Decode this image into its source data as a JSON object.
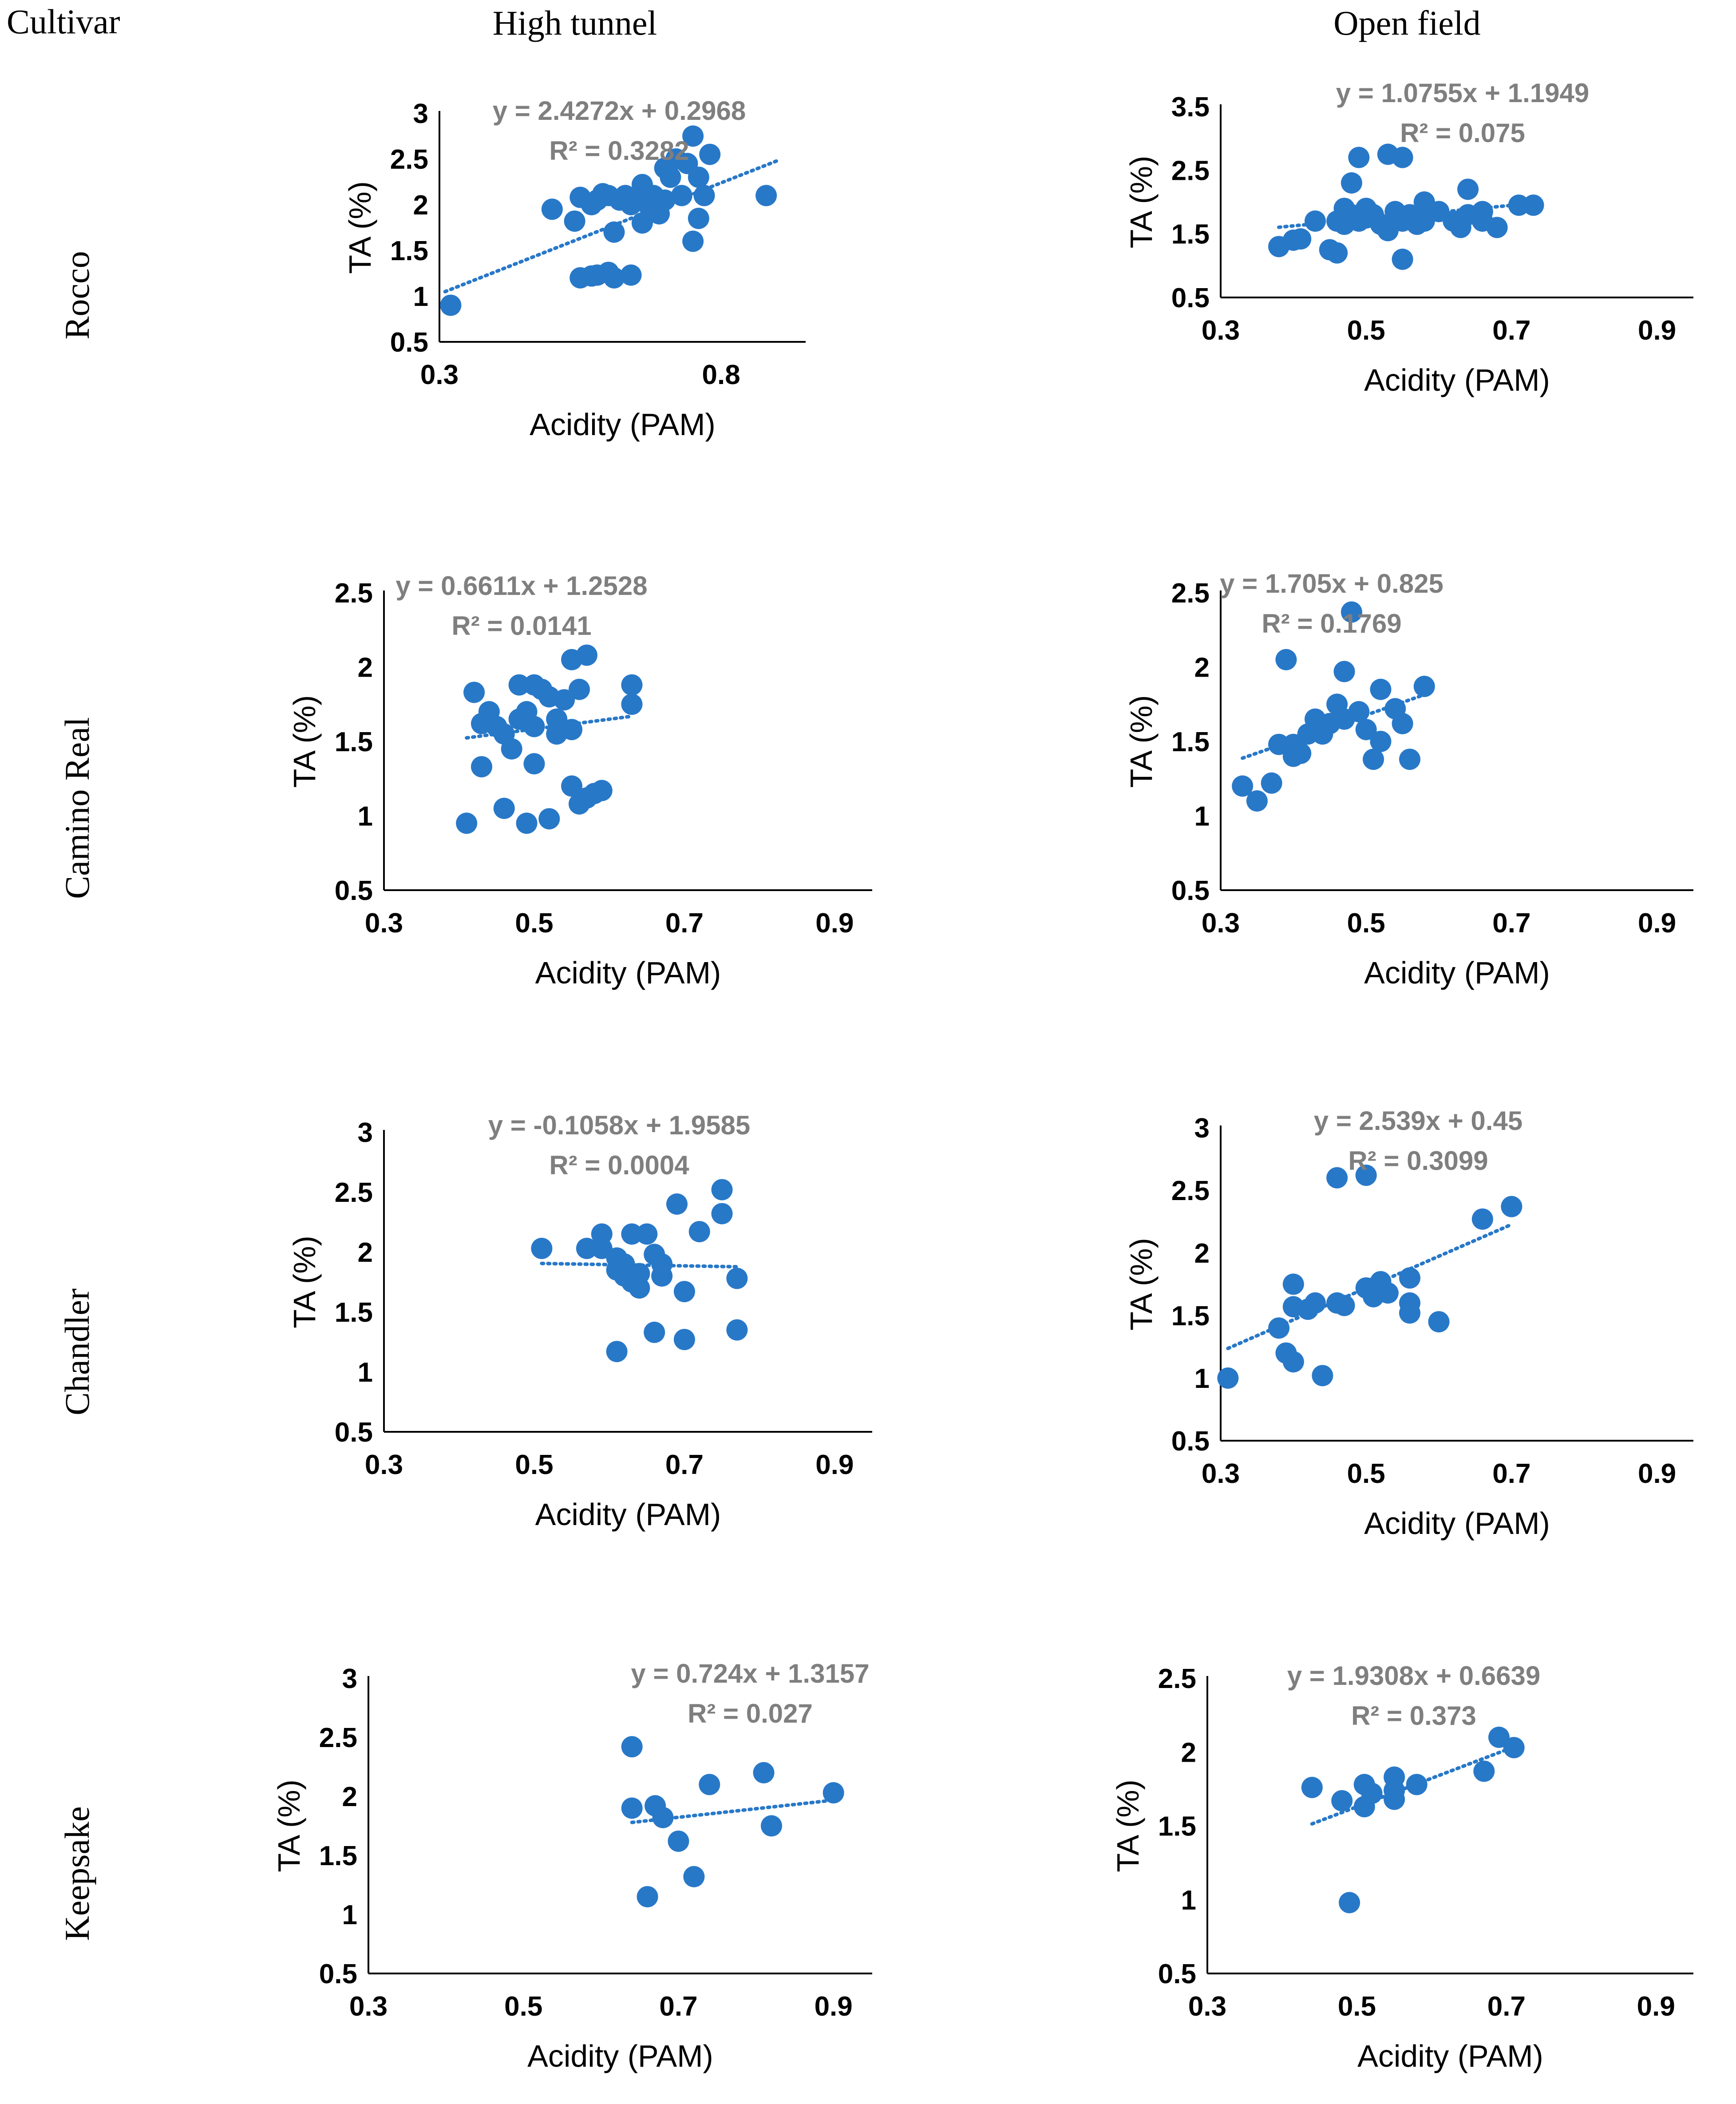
{
  "labels": {
    "cultivar_header": "Cultivar",
    "column_headers": [
      "High tunnel",
      "Open field"
    ],
    "row_labels": [
      "Rocco",
      "Camino Real",
      "Chandler",
      "Keepsake"
    ]
  },
  "colors": {
    "marker": "#2878C8",
    "axis": "#000000",
    "equation": "#7F7F7F",
    "trendline": "#2878C8"
  },
  "chart_data": [
    {
      "type": "scatter",
      "row": 0,
      "col": 0,
      "xlabel": "Acidity (PAM)",
      "ylabel": "TA (%)",
      "xlim": [
        0.3,
        0.95
      ],
      "ylim": [
        0.5,
        3
      ],
      "xticks": [
        "0.3",
        "0.8"
      ],
      "yticks": [
        "0.5",
        "1",
        "1.5",
        "2",
        "2.5",
        "3"
      ],
      "equation": "y = 2.4272x + 0.2968",
      "r2": "R² = 0.3282",
      "trend": {
        "slope": 2.4272,
        "intercept": 0.2968,
        "x_range": [
          0.31,
          0.9
        ]
      },
      "points": [
        [
          0.32,
          0.9
        ],
        [
          0.5,
          1.95
        ],
        [
          0.55,
          1.2
        ],
        [
          0.57,
          1.22
        ],
        [
          0.58,
          1.23
        ],
        [
          0.6,
          1.26
        ],
        [
          0.61,
          1.2
        ],
        [
          0.64,
          1.23
        ],
        [
          0.54,
          1.82
        ],
        [
          0.55,
          2.08
        ],
        [
          0.57,
          2.0
        ],
        [
          0.58,
          2.05
        ],
        [
          0.59,
          2.12
        ],
        [
          0.6,
          2.1
        ],
        [
          0.61,
          1.7
        ],
        [
          0.62,
          2.05
        ],
        [
          0.63,
          2.1
        ],
        [
          0.64,
          2.0
        ],
        [
          0.65,
          2.05
        ],
        [
          0.66,
          1.8
        ],
        [
          0.66,
          2.22
        ],
        [
          0.67,
          2.0
        ],
        [
          0.68,
          2.1
        ],
        [
          0.69,
          1.9
        ],
        [
          0.7,
          2.4
        ],
        [
          0.7,
          2.05
        ],
        [
          0.71,
          2.3
        ],
        [
          0.72,
          2.5
        ],
        [
          0.73,
          2.1
        ],
        [
          0.74,
          2.45
        ],
        [
          0.75,
          2.75
        ],
        [
          0.75,
          1.6
        ],
        [
          0.76,
          1.85
        ],
        [
          0.76,
          2.3
        ],
        [
          0.77,
          2.1
        ],
        [
          0.78,
          2.55
        ],
        [
          0.88,
          2.1
        ]
      ]
    },
    {
      "type": "scatter",
      "row": 0,
      "col": 1,
      "xlabel": "Acidity (PAM)",
      "ylabel": "TA (%)",
      "xlim": [
        0.3,
        0.95
      ],
      "ylim": [
        0.5,
        3.5
      ],
      "xticks": [
        "0.3",
        "0.5",
        "0.7",
        "0.9"
      ],
      "yticks": [
        "0.5",
        "1.5",
        "2.5",
        "3.5"
      ],
      "equation": "y = 1.0755x + 1.1949",
      "r2": "R² = 0.075",
      "trend": {
        "slope": 1.0755,
        "intercept": 1.1949,
        "x_range": [
          0.38,
          0.7
        ]
      },
      "points": [
        [
          0.38,
          1.3
        ],
        [
          0.4,
          1.4
        ],
        [
          0.41,
          1.42
        ],
        [
          0.43,
          1.7
        ],
        [
          0.45,
          1.25
        ],
        [
          0.46,
          1.2
        ],
        [
          0.46,
          1.7
        ],
        [
          0.47,
          1.65
        ],
        [
          0.47,
          1.9
        ],
        [
          0.48,
          1.8
        ],
        [
          0.48,
          2.3
        ],
        [
          0.49,
          1.7
        ],
        [
          0.49,
          2.7
        ],
        [
          0.5,
          1.9
        ],
        [
          0.5,
          1.75
        ],
        [
          0.51,
          1.8
        ],
        [
          0.52,
          1.65
        ],
        [
          0.53,
          1.55
        ],
        [
          0.53,
          2.75
        ],
        [
          0.54,
          1.85
        ],
        [
          0.55,
          1.1
        ],
        [
          0.55,
          1.7
        ],
        [
          0.55,
          2.7
        ],
        [
          0.56,
          1.8
        ],
        [
          0.57,
          1.65
        ],
        [
          0.58,
          2.0
        ],
        [
          0.58,
          1.7
        ],
        [
          0.59,
          1.85
        ],
        [
          0.6,
          1.85
        ],
        [
          0.62,
          1.7
        ],
        [
          0.63,
          1.6
        ],
        [
          0.64,
          2.2
        ],
        [
          0.64,
          1.8
        ],
        [
          0.66,
          1.85
        ],
        [
          0.66,
          1.7
        ],
        [
          0.68,
          1.6
        ],
        [
          0.71,
          1.95
        ],
        [
          0.73,
          1.95
        ]
      ]
    },
    {
      "type": "scatter",
      "row": 1,
      "col": 0,
      "xlabel": "Acidity (PAM)",
      "ylabel": "TA (%)",
      "xlim": [
        0.3,
        0.95
      ],
      "ylim": [
        0.5,
        2.5
      ],
      "xticks": [
        "0.3",
        "0.5",
        "0.7",
        "0.9"
      ],
      "yticks": [
        "0.5",
        "1",
        "1.5",
        "2",
        "2.5"
      ],
      "equation": "y = 0.6611x + 1.2528",
      "r2": "R² = 0.0141",
      "trend": {
        "slope": 0.6611,
        "intercept": 1.2528,
        "x_range": [
          0.41,
          0.63
        ]
      },
      "points": [
        [
          0.41,
          0.95
        ],
        [
          0.42,
          1.83
        ],
        [
          0.43,
          1.33
        ],
        [
          0.43,
          1.62
        ],
        [
          0.44,
          1.7
        ],
        [
          0.45,
          1.6
        ],
        [
          0.46,
          1.55
        ],
        [
          0.46,
          1.05
        ],
        [
          0.47,
          1.45
        ],
        [
          0.48,
          1.88
        ],
        [
          0.48,
          1.65
        ],
        [
          0.49,
          1.7
        ],
        [
          0.49,
          0.95
        ],
        [
          0.5,
          1.88
        ],
        [
          0.5,
          1.6
        ],
        [
          0.5,
          1.35
        ],
        [
          0.51,
          1.85
        ],
        [
          0.52,
          0.98
        ],
        [
          0.52,
          1.8
        ],
        [
          0.53,
          1.55
        ],
        [
          0.53,
          1.65
        ],
        [
          0.54,
          1.78
        ],
        [
          0.55,
          2.05
        ],
        [
          0.55,
          1.2
        ],
        [
          0.55,
          1.58
        ],
        [
          0.56,
          1.85
        ],
        [
          0.56,
          1.08
        ],
        [
          0.57,
          1.12
        ],
        [
          0.57,
          2.08
        ],
        [
          0.58,
          1.15
        ],
        [
          0.59,
          1.17
        ],
        [
          0.63,
          1.75
        ],
        [
          0.63,
          1.88
        ]
      ]
    },
    {
      "type": "scatter",
      "row": 1,
      "col": 1,
      "xlabel": "Acidity (PAM)",
      "ylabel": "TA (%)",
      "xlim": [
        0.3,
        0.95
      ],
      "ylim": [
        0.5,
        2.5
      ],
      "xticks": [
        "0.3",
        "0.5",
        "0.7",
        "0.9"
      ],
      "yticks": [
        "0.5",
        "1",
        "1.5",
        "2",
        "2.5"
      ],
      "equation": "y = 1.705x + 0.825",
      "r2": "R² = 0.1769",
      "trend": {
        "slope": 1.705,
        "intercept": 0.825,
        "x_range": [
          0.33,
          0.58
        ]
      },
      "points": [
        [
          0.33,
          1.2
        ],
        [
          0.35,
          1.1
        ],
        [
          0.37,
          1.22
        ],
        [
          0.38,
          1.48
        ],
        [
          0.39,
          2.05
        ],
        [
          0.4,
          1.4
        ],
        [
          0.4,
          1.48
        ],
        [
          0.41,
          1.42
        ],
        [
          0.42,
          1.55
        ],
        [
          0.43,
          1.65
        ],
        [
          0.44,
          1.55
        ],
        [
          0.45,
          1.62
        ],
        [
          0.46,
          1.75
        ],
        [
          0.47,
          1.97
        ],
        [
          0.47,
          1.65
        ],
        [
          0.48,
          2.37
        ],
        [
          0.49,
          1.7
        ],
        [
          0.5,
          1.58
        ],
        [
          0.51,
          1.38
        ],
        [
          0.52,
          1.85
        ],
        [
          0.52,
          1.5
        ],
        [
          0.54,
          1.72
        ],
        [
          0.55,
          1.62
        ],
        [
          0.56,
          1.38
        ],
        [
          0.58,
          1.87
        ]
      ]
    },
    {
      "type": "scatter",
      "row": 2,
      "col": 0,
      "xlabel": "Acidity (PAM)",
      "ylabel": "TA (%)",
      "xlim": [
        0.3,
        0.95
      ],
      "ylim": [
        0.5,
        3
      ],
      "xticks": [
        "0.3",
        "0.5",
        "0.7",
        "0.9"
      ],
      "yticks": [
        "0.5",
        "1",
        "1.5",
        "2",
        "2.5",
        "3"
      ],
      "equation": "y = -0.1058x + 1.9585",
      "r2": "R² = 0.0004",
      "trend": {
        "slope": -0.1058,
        "intercept": 1.9585,
        "x_range": [
          0.51,
          0.77
        ]
      },
      "points": [
        [
          0.51,
          2.03
        ],
        [
          0.57,
          2.03
        ],
        [
          0.59,
          2.15
        ],
        [
          0.59,
          2.03
        ],
        [
          0.61,
          1.85
        ],
        [
          0.61,
          1.95
        ],
        [
          0.61,
          1.17
        ],
        [
          0.62,
          1.9
        ],
        [
          0.62,
          1.8
        ],
        [
          0.63,
          1.75
        ],
        [
          0.64,
          1.7
        ],
        [
          0.64,
          1.82
        ],
        [
          0.63,
          2.15
        ],
        [
          0.65,
          2.15
        ],
        [
          0.66,
          1.98
        ],
        [
          0.66,
          1.33
        ],
        [
          0.67,
          1.9
        ],
        [
          0.67,
          1.8
        ],
        [
          0.69,
          2.4
        ],
        [
          0.7,
          1.67
        ],
        [
          0.7,
          1.27
        ],
        [
          0.72,
          2.17
        ],
        [
          0.75,
          2.52
        ],
        [
          0.75,
          2.32
        ],
        [
          0.77,
          1.78
        ],
        [
          0.77,
          1.35
        ]
      ]
    },
    {
      "type": "scatter",
      "row": 2,
      "col": 1,
      "xlabel": "Acidity (PAM)",
      "ylabel": "TA (%)",
      "xlim": [
        0.3,
        0.95
      ],
      "ylim": [
        0.5,
        3
      ],
      "xticks": [
        "0.3",
        "0.5",
        "0.7",
        "0.9"
      ],
      "yticks": [
        "0.5",
        "1",
        "1.5",
        "2",
        "2.5",
        "3"
      ],
      "equation": "y = 2.539x + 0.45",
      "r2": "R² = 0.3099",
      "trend": {
        "slope": 2.539,
        "intercept": 0.45,
        "x_range": [
          0.31,
          0.7
        ]
      },
      "points": [
        [
          0.31,
          1.0
        ],
        [
          0.38,
          1.4
        ],
        [
          0.39,
          1.2
        ],
        [
          0.4,
          1.75
        ],
        [
          0.4,
          1.57
        ],
        [
          0.4,
          1.13
        ],
        [
          0.42,
          1.55
        ],
        [
          0.43,
          1.6
        ],
        [
          0.44,
          1.02
        ],
        [
          0.46,
          2.6
        ],
        [
          0.46,
          1.6
        ],
        [
          0.47,
          1.58
        ],
        [
          0.5,
          1.72
        ],
        [
          0.5,
          2.62
        ],
        [
          0.51,
          1.65
        ],
        [
          0.51,
          1.72
        ],
        [
          0.52,
          1.77
        ],
        [
          0.53,
          1.68
        ],
        [
          0.56,
          1.8
        ],
        [
          0.56,
          1.6
        ],
        [
          0.56,
          1.52
        ],
        [
          0.6,
          1.45
        ],
        [
          0.66,
          2.27
        ],
        [
          0.7,
          2.37
        ]
      ]
    },
    {
      "type": "scatter",
      "row": 3,
      "col": 0,
      "xlabel": "Acidity (PAM)",
      "ylabel": "TA (%)",
      "xlim": [
        0.3,
        0.95
      ],
      "ylim": [
        0.5,
        3
      ],
      "xticks": [
        "0.3",
        "0.5",
        "0.7",
        "0.9"
      ],
      "yticks": [
        "0.5",
        "1",
        "1.5",
        "2",
        "2.5",
        "3"
      ],
      "equation": "y = 0.724x + 1.3157",
      "r2": "R² = 0.027",
      "trend": {
        "slope": 0.724,
        "intercept": 1.3157,
        "x_range": [
          0.64,
          0.9
        ]
      },
      "points": [
        [
          0.64,
          2.42
        ],
        [
          0.64,
          1.9
        ],
        [
          0.66,
          1.15
        ],
        [
          0.67,
          1.92
        ],
        [
          0.68,
          1.82
        ],
        [
          0.7,
          1.62
        ],
        [
          0.72,
          1.32
        ],
        [
          0.74,
          2.1
        ],
        [
          0.81,
          2.2
        ],
        [
          0.82,
          1.75
        ],
        [
          0.9,
          2.03
        ]
      ]
    },
    {
      "type": "scatter",
      "row": 3,
      "col": 1,
      "xlabel": "Acidity (PAM)",
      "ylabel": "TA (%)",
      "xlim": [
        0.3,
        0.95
      ],
      "ylim": [
        0.5,
        2.5
      ],
      "xticks": [
        "0.3",
        "0.5",
        "0.7",
        "0.9"
      ],
      "yticks": [
        "0.5",
        "1",
        "1.5",
        "2",
        "2.5"
      ],
      "equation": "y = 1.9308x + 0.6639",
      "r2": "R² = 0.373",
      "trend": {
        "slope": 1.9308,
        "intercept": 0.6639,
        "x_range": [
          0.44,
          0.71
        ]
      },
      "points": [
        [
          0.44,
          1.76
        ],
        [
          0.48,
          1.67
        ],
        [
          0.49,
          0.98
        ],
        [
          0.51,
          1.78
        ],
        [
          0.51,
          1.63
        ],
        [
          0.52,
          1.72
        ],
        [
          0.55,
          1.83
        ],
        [
          0.55,
          1.68
        ],
        [
          0.55,
          1.74
        ],
        [
          0.58,
          1.78
        ],
        [
          0.67,
          1.87
        ],
        [
          0.69,
          2.1
        ],
        [
          0.71,
          2.03
        ]
      ]
    }
  ]
}
